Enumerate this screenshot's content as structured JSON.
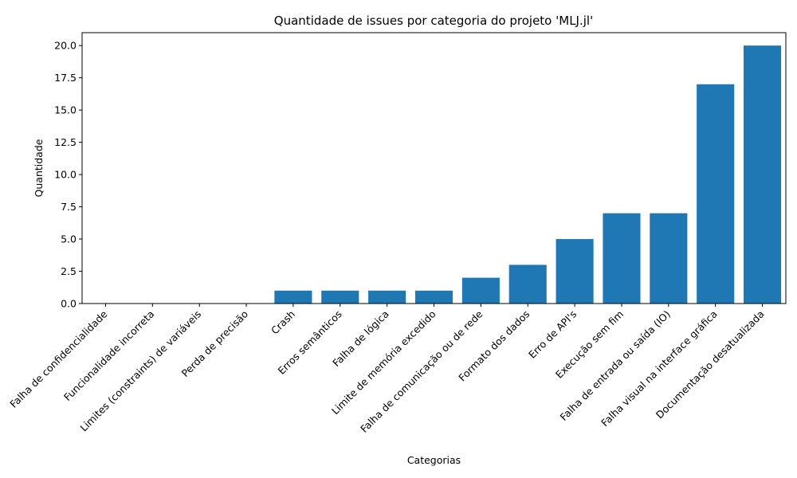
{
  "chart_data": {
    "type": "bar",
    "title": "Quantidade de issues por categoria do projeto 'MLJ.jl'",
    "xlabel": "Categorias",
    "ylabel": "Quantidade",
    "categories": [
      "Falha de confidencialidade",
      "Funcionalidade incorreta",
      "Limites (constraints) de variáveis",
      "Perda de precisão",
      "Crash",
      "Erros semânticos",
      "Falha de lógica",
      "Limite de memória excedido",
      "Falha de comunicação ou de rede",
      "Formato dos dados",
      "Erro de API's",
      "Execução sem fim",
      "Falha de entrada ou saída (IO)",
      "Falha visual na interface gráfica",
      "Documentação desatualizada"
    ],
    "values": [
      0,
      0,
      0,
      0,
      1,
      1,
      1,
      1,
      2,
      3,
      5,
      7,
      7,
      17,
      20
    ],
    "ylim": [
      0,
      21
    ],
    "yticks": [
      "0.0",
      "2.5",
      "5.0",
      "7.5",
      "10.0",
      "12.5",
      "15.0",
      "17.5",
      "20.0"
    ],
    "grid": false,
    "legend": "none",
    "bar_color": "#1f77b4"
  }
}
